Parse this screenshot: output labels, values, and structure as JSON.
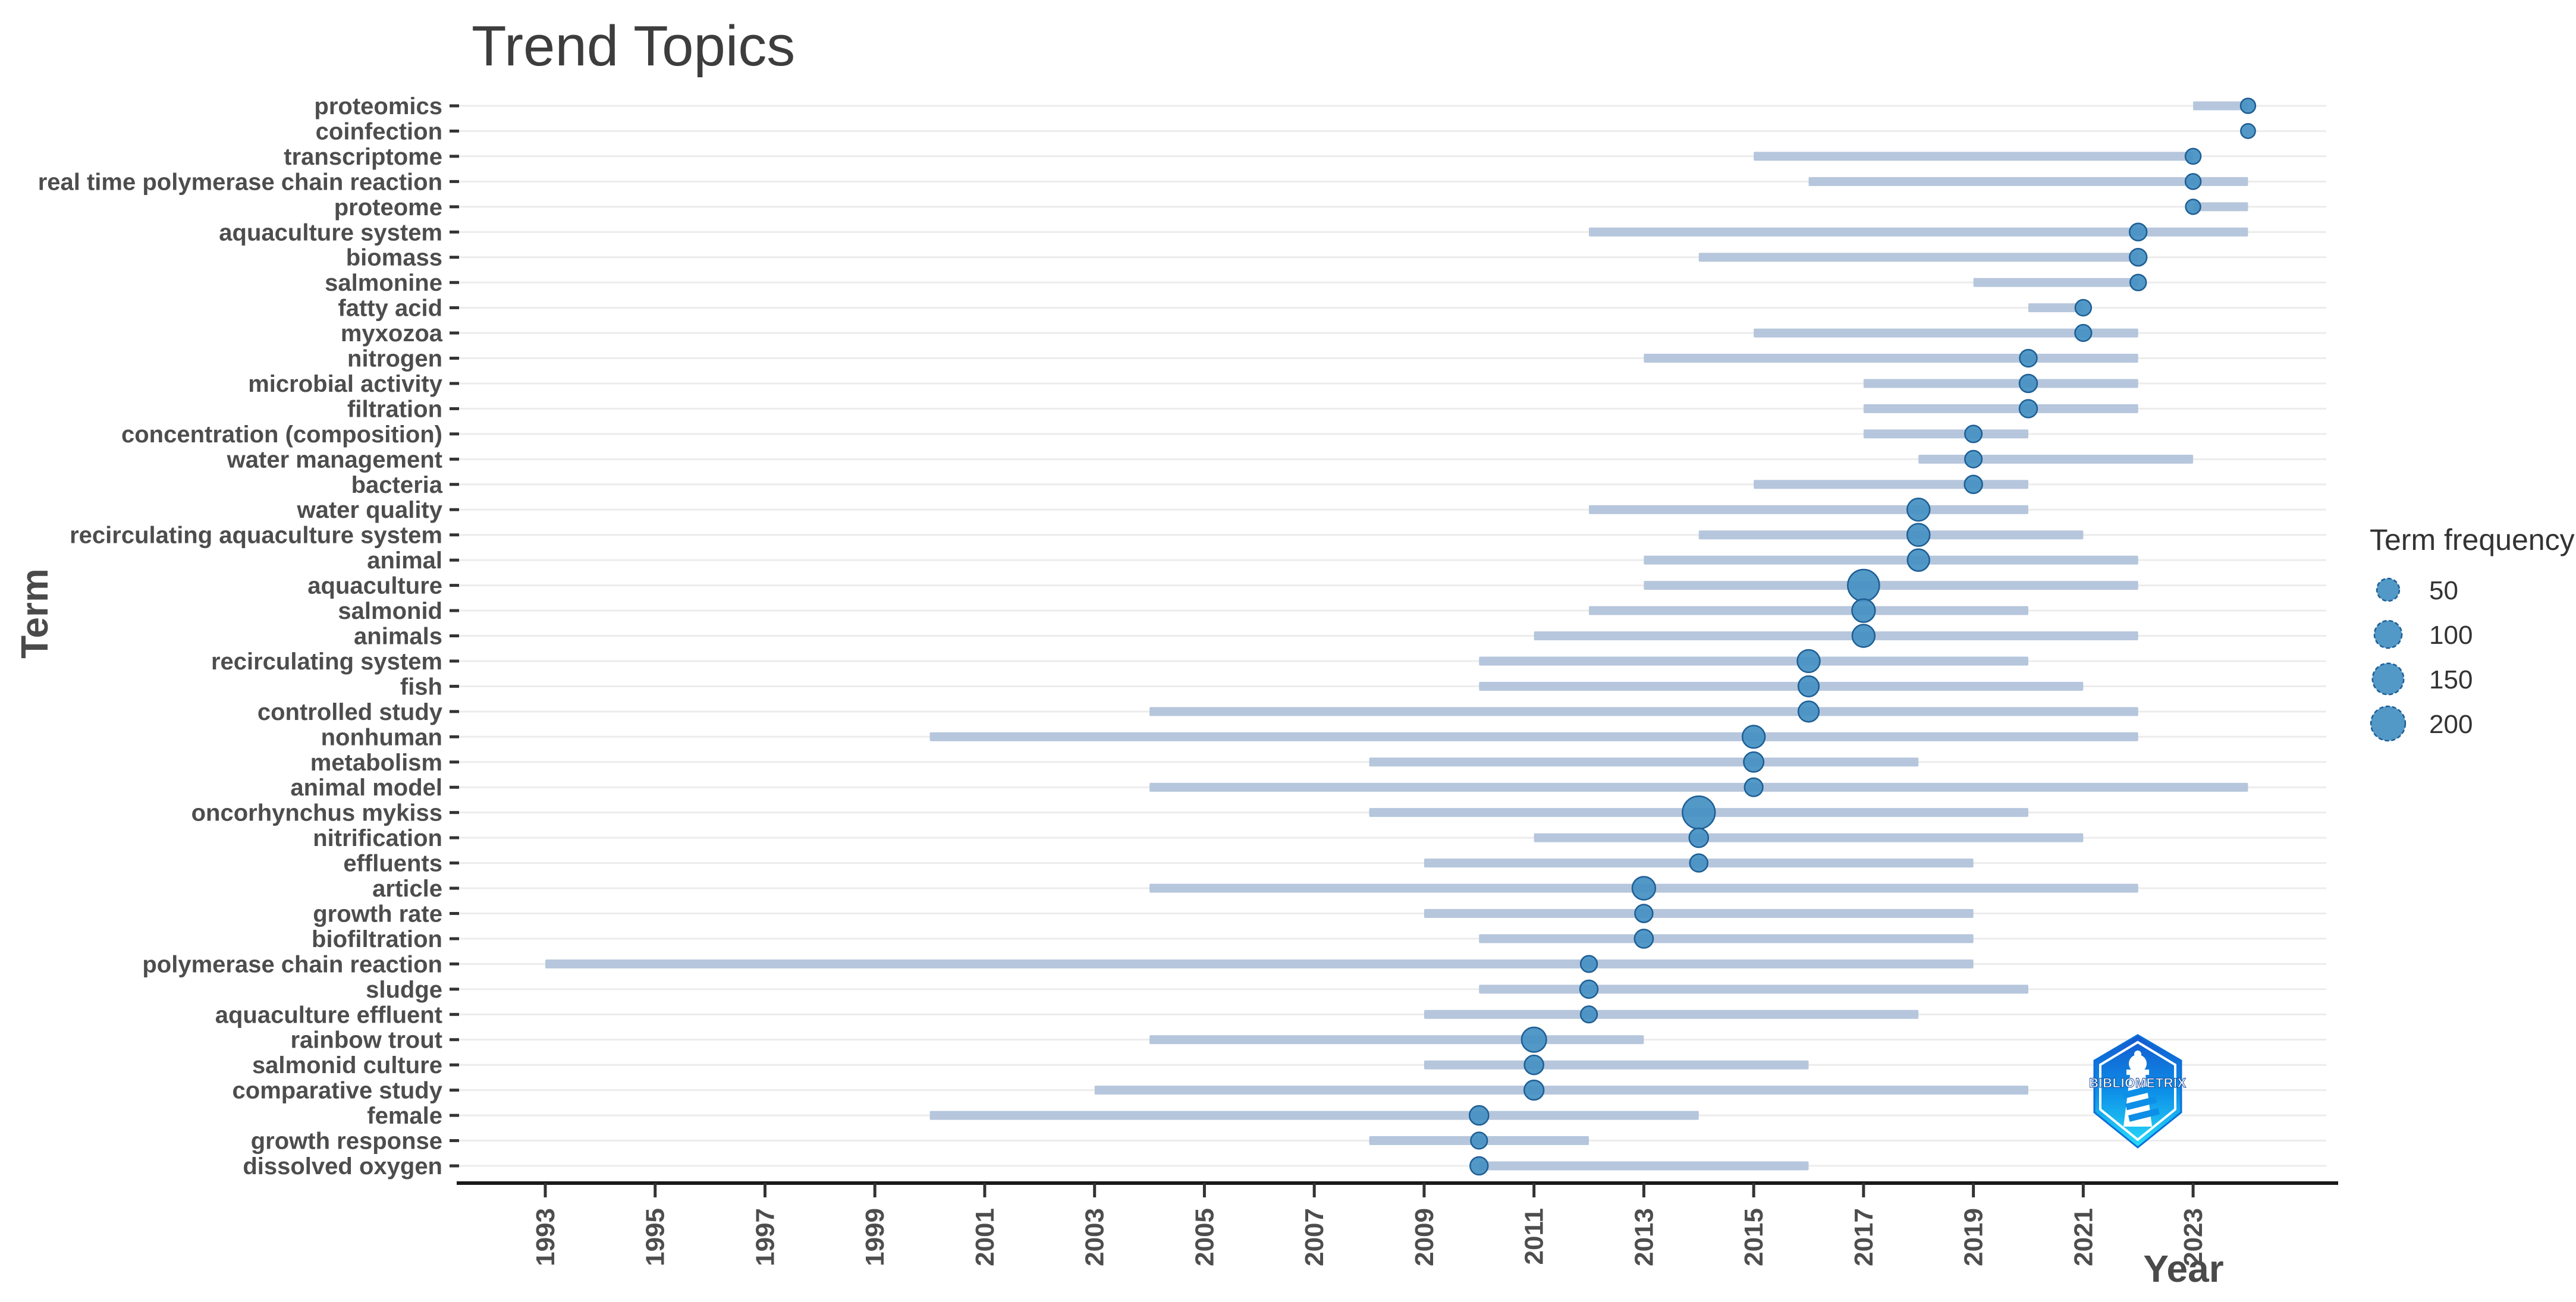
{
  "page": {
    "background": "#ffffff"
  },
  "logo": {
    "text": "BIBLIOMETRIX"
  },
  "colors": {
    "dot_fill": "#4691c4",
    "dot_stroke": "#1d5e94",
    "band": "#b2c3da",
    "grid": "#ececec",
    "axis_line": "#1a1a1a",
    "tick_text": "#4d4d4d",
    "title_text": "#3d3d3d",
    "logo_top": "#1458ce",
    "logo_mid": "#0d8fe8",
    "logo_bottom": "#27ddf8"
  },
  "chart_data": {
    "type": "scatter",
    "subtype": "bubble-timeline",
    "title": "Trend Topics",
    "xlabel": "Year",
    "ylabel": "Term",
    "xlim": [
      1991.5,
      2025.5
    ],
    "x_ticks": [
      1993,
      1995,
      1997,
      1999,
      2001,
      2003,
      2005,
      2007,
      2009,
      2011,
      2013,
      2015,
      2017,
      2019,
      2021,
      2023
    ],
    "grid": "horizontal-only",
    "legend": {
      "title": "Term frequency",
      "position": "right",
      "sizes": [
        50,
        100,
        150,
        200
      ]
    },
    "terms": [
      {
        "term": "proteomics",
        "freq": 6,
        "year_q1": 2023,
        "year_med": 2024,
        "year_q3": 2024
      },
      {
        "term": "coinfection",
        "freq": 5,
        "year_q1": 2024,
        "year_med": 2024,
        "year_q3": 2024
      },
      {
        "term": "transcriptome",
        "freq": 8,
        "year_q1": 2015,
        "year_med": 2023,
        "year_q3": 2023
      },
      {
        "term": "real time polymerase chain reaction",
        "freq": 8,
        "year_q1": 2016,
        "year_med": 2023,
        "year_q3": 2024
      },
      {
        "term": "proteome",
        "freq": 6,
        "year_q1": 2023,
        "year_med": 2023,
        "year_q3": 2024
      },
      {
        "term": "aquaculture system",
        "freq": 15,
        "year_q1": 2012,
        "year_med": 2022,
        "year_q3": 2024
      },
      {
        "term": "biomass",
        "freq": 15,
        "year_q1": 2014,
        "year_med": 2022,
        "year_q3": 2022
      },
      {
        "term": "salmonine",
        "freq": 10,
        "year_q1": 2019,
        "year_med": 2022,
        "year_q3": 2022
      },
      {
        "term": "fatty acid",
        "freq": 10,
        "year_q1": 2020,
        "year_med": 2021,
        "year_q3": 2021
      },
      {
        "term": "myxozoa",
        "freq": 12,
        "year_q1": 2015,
        "year_med": 2021,
        "year_q3": 2022
      },
      {
        "term": "nitrogen",
        "freq": 15,
        "year_q1": 2013,
        "year_med": 2020,
        "year_q3": 2022
      },
      {
        "term": "microbial activity",
        "freq": 18,
        "year_q1": 2017,
        "year_med": 2020,
        "year_q3": 2022
      },
      {
        "term": "filtration",
        "freq": 18,
        "year_q1": 2017,
        "year_med": 2020,
        "year_q3": 2022
      },
      {
        "term": "concentration (composition)",
        "freq": 14,
        "year_q1": 2017,
        "year_med": 2019,
        "year_q3": 2020
      },
      {
        "term": "water management",
        "freq": 14,
        "year_q1": 2018,
        "year_med": 2019,
        "year_q3": 2023
      },
      {
        "term": "bacteria",
        "freq": 18,
        "year_q1": 2015,
        "year_med": 2019,
        "year_q3": 2020
      },
      {
        "term": "water quality",
        "freq": 50,
        "year_q1": 2012,
        "year_med": 2018,
        "year_q3": 2020
      },
      {
        "term": "recirculating aquaculture system",
        "freq": 50,
        "year_q1": 2014,
        "year_med": 2018,
        "year_q3": 2021
      },
      {
        "term": "animal",
        "freq": 45,
        "year_q1": 2013,
        "year_med": 2018,
        "year_q3": 2022
      },
      {
        "term": "aquaculture",
        "freq": 155,
        "year_q1": 2013,
        "year_med": 2017,
        "year_q3": 2022
      },
      {
        "term": "salmonid",
        "freq": 55,
        "year_q1": 2012,
        "year_med": 2017,
        "year_q3": 2020
      },
      {
        "term": "animals",
        "freq": 50,
        "year_q1": 2011,
        "year_med": 2017,
        "year_q3": 2022
      },
      {
        "term": "recirculating system",
        "freq": 50,
        "year_q1": 2010,
        "year_med": 2016,
        "year_q3": 2020
      },
      {
        "term": "fish",
        "freq": 35,
        "year_q1": 2010,
        "year_med": 2016,
        "year_q3": 2021
      },
      {
        "term": "controlled study",
        "freq": 35,
        "year_q1": 2004,
        "year_med": 2016,
        "year_q3": 2022
      },
      {
        "term": "nonhuman",
        "freq": 50,
        "year_q1": 2000,
        "year_med": 2015,
        "year_q3": 2022
      },
      {
        "term": "metabolism",
        "freq": 30,
        "year_q1": 2008,
        "year_med": 2015,
        "year_q3": 2018
      },
      {
        "term": "animal model",
        "freq": 20,
        "year_q1": 2004,
        "year_med": 2015,
        "year_q3": 2024
      },
      {
        "term": "oncorhynchus mykiss",
        "freq": 170,
        "year_q1": 2008,
        "year_med": 2014,
        "year_q3": 2020
      },
      {
        "term": "nitrification",
        "freq": 25,
        "year_q1": 2011,
        "year_med": 2014,
        "year_q3": 2021
      },
      {
        "term": "effluents",
        "freq": 18,
        "year_q1": 2009,
        "year_med": 2014,
        "year_q3": 2019
      },
      {
        "term": "article",
        "freq": 55,
        "year_q1": 2004,
        "year_med": 2013,
        "year_q3": 2022
      },
      {
        "term": "growth rate",
        "freq": 18,
        "year_q1": 2009,
        "year_med": 2013,
        "year_q3": 2019
      },
      {
        "term": "biofiltration",
        "freq": 22,
        "year_q1": 2010,
        "year_med": 2013,
        "year_q3": 2019
      },
      {
        "term": "polymerase chain reaction",
        "freq": 12,
        "year_q1": 1993,
        "year_med": 2012,
        "year_q3": 2019
      },
      {
        "term": "sludge",
        "freq": 18,
        "year_q1": 2010,
        "year_med": 2012,
        "year_q3": 2020
      },
      {
        "term": "aquaculture effluent",
        "freq": 12,
        "year_q1": 2009,
        "year_med": 2012,
        "year_q3": 2018
      },
      {
        "term": "rainbow trout",
        "freq": 70,
        "year_q1": 2004,
        "year_med": 2011,
        "year_q3": 2013
      },
      {
        "term": "salmonid culture",
        "freq": 25,
        "year_q1": 2009,
        "year_med": 2011,
        "year_q3": 2016
      },
      {
        "term": "comparative study",
        "freq": 28,
        "year_q1": 2003,
        "year_med": 2011,
        "year_q3": 2020
      },
      {
        "term": "female",
        "freq": 25,
        "year_q1": 2000,
        "year_med": 2010,
        "year_q3": 2014
      },
      {
        "term": "growth response",
        "freq": 12,
        "year_q1": 2008,
        "year_med": 2010,
        "year_q3": 2012
      },
      {
        "term": "dissolved oxygen",
        "freq": 18,
        "year_q1": 2010,
        "year_med": 2010,
        "year_q3": 2016
      }
    ]
  }
}
